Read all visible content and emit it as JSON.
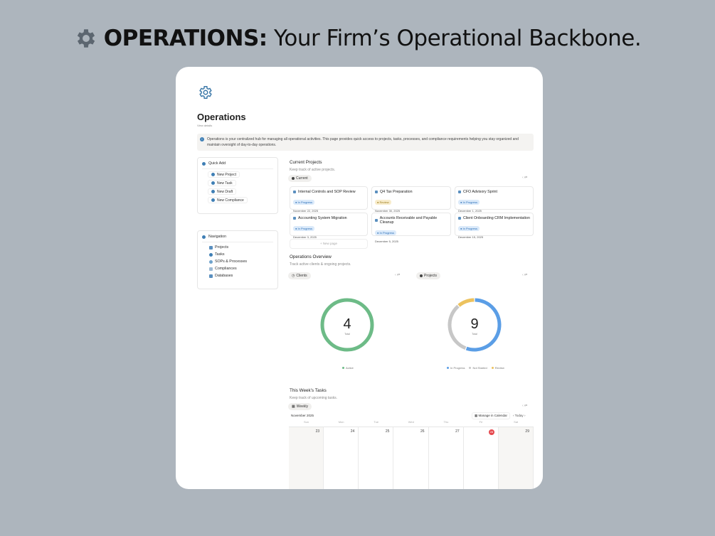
{
  "headline": {
    "bold": "OPERATIONS:",
    "rest": "Your Firm’s Operational Backbone.",
    "icon": "gear-icon"
  },
  "page": {
    "title": "Operations",
    "subtitle": "View details",
    "callout": "Operations is your centralized hub for managing all operational activities. This page provides quick access to projects, tasks, processes, and compliance requirements helping you stay organized and maintain oversight of day-to-day operations."
  },
  "quick_add": {
    "title": "Quick Add",
    "buttons": [
      "New Project",
      "New Task",
      "New Draft",
      "New Compliance"
    ]
  },
  "navigation": {
    "title": "Navigation",
    "items": [
      "Projects",
      "Tasks",
      "SOPs & Processes",
      "Compliances",
      "Databases"
    ]
  },
  "current_projects": {
    "title": "Current Projects",
    "subtitle": "Keep track of active projects.",
    "view": "Current",
    "new_page": "+ New page",
    "projects": [
      {
        "name": "Internal Controls and SOP Review",
        "status": "In Progress",
        "date": "November 22, 2025"
      },
      {
        "name": "Q4 Tax Preparation",
        "status": "Review",
        "date": "November 30, 2025"
      },
      {
        "name": "CFO Advisory Sprint",
        "status": "In Progress",
        "date": "December 1, 2025"
      },
      {
        "name": "Accounting System Migration",
        "status": "In Progress",
        "date": "December 3, 2025"
      },
      {
        "name": "Accounts Receivable and Payable Cleanup",
        "status": "In Progress",
        "date": "December 5, 2025"
      },
      {
        "name": "Client Onboarding CRM Implementation",
        "status": "In Progress",
        "date": "December 15, 2025"
      }
    ]
  },
  "overview": {
    "title": "Operations Overview",
    "subtitle": "Track active clients & ongoing projects.",
    "clients": {
      "view": "Clients",
      "total": "4",
      "total_label": "Total",
      "segments": [
        {
          "label": "Active",
          "value": 4,
          "color": "#6dbb87"
        }
      ]
    },
    "projects": {
      "view": "Projects",
      "total": "9",
      "total_label": "Total",
      "segments": [
        {
          "label": "In Progress",
          "value": 5,
          "color": "#5b9ee6"
        },
        {
          "label": "Not Started",
          "value": 3,
          "color": "#c7c7c7"
        },
        {
          "label": "Review",
          "value": 1,
          "color": "#ecc25e"
        }
      ]
    }
  },
  "tasks": {
    "title": "This Week’s Tasks",
    "subtitle": "Keep track of upcoming tasks.",
    "view": "Weekly",
    "month": "November 2025",
    "manage": "Manage in Calendar",
    "today": "Today",
    "days": [
      "Sun",
      "Mon",
      "Tue",
      "Wed",
      "Thu",
      "Fri",
      "Sat"
    ],
    "dates": [
      "23",
      "24",
      "25",
      "26",
      "27",
      "28",
      "29"
    ],
    "today_index": 5,
    "today_color": "#e5484d"
  }
}
